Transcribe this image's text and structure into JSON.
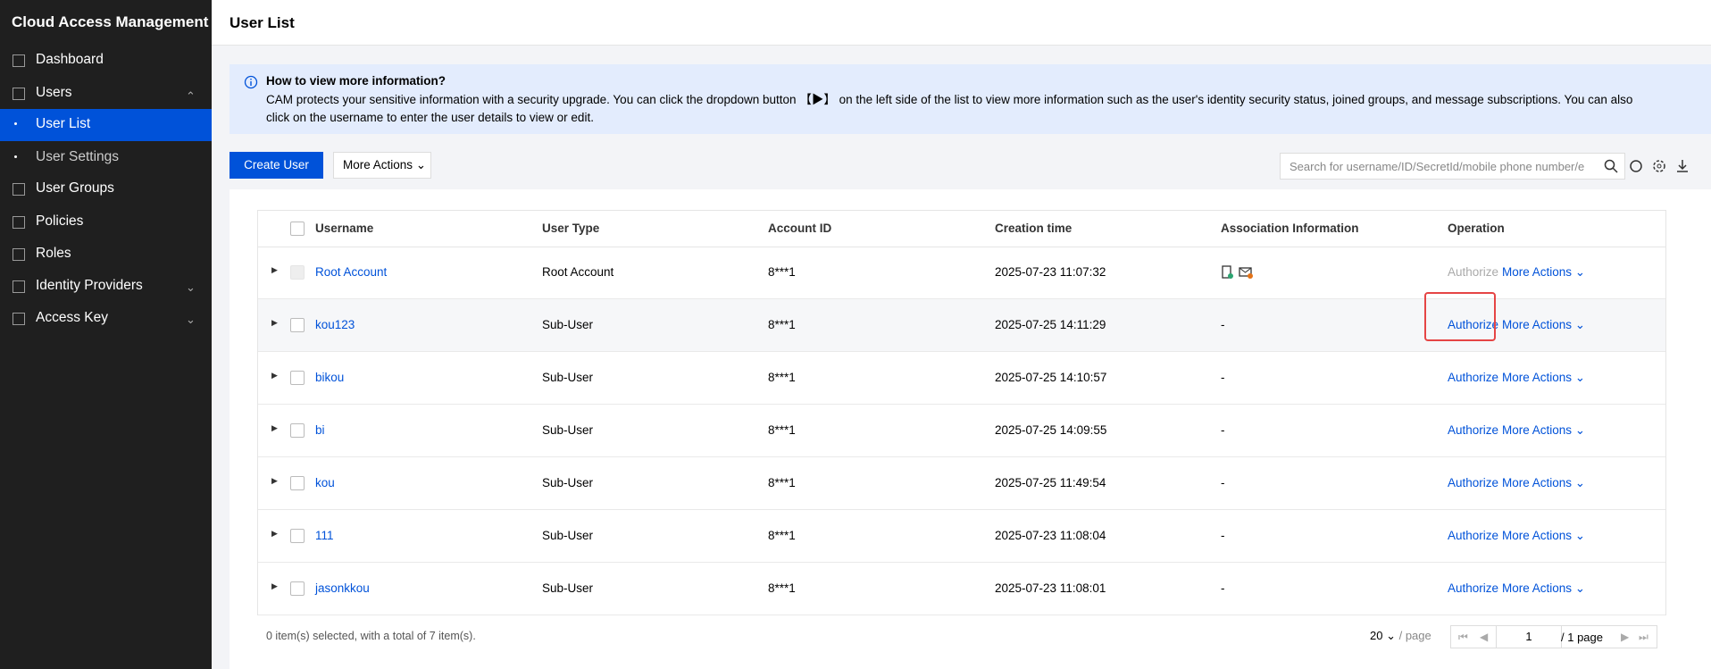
{
  "sidebar": {
    "title": "Cloud Access Management",
    "items": [
      "Dashboard",
      "Users",
      "User List",
      "User Settings",
      "User Groups",
      "Policies",
      "Roles",
      "Identity Providers",
      "Access Key"
    ]
  },
  "header": {
    "title": "User List"
  },
  "info": {
    "title": "How to view more information?",
    "text": "CAM protects your sensitive information with a security upgrade. You can click the dropdown button 【▶】 on the left side of the list to view more information such as the user's identity security status, joined groups, and message subscriptions. You can also click on the username to enter the user details to view or edit."
  },
  "toolbar": {
    "create": "Create User",
    "more": "More Actions",
    "search": "Search for username/ID/SecretId/mobile phone number/e"
  },
  "table": {
    "columns": [
      "Username",
      "User Type",
      "Account ID",
      "Creation time",
      "Association Information",
      "Operation"
    ],
    "rows": [
      {
        "username": "Root Account",
        "type": "Root Account",
        "account": "8***1",
        "time": "2025-07-23 11:07:32",
        "association": null,
        "authorize": "Authorize",
        "more": "More Actions"
      },
      {
        "username": "kou123",
        "type": "Sub-User",
        "account": "8***1",
        "time": "2025-07-25 14:11:29",
        "association": "-",
        "authorize": "Authorize",
        "more": "More Actions"
      },
      {
        "username": "bikou",
        "type": "Sub-User",
        "account": "8***1",
        "time": "2025-07-25 14:10:57",
        "association": "-",
        "authorize": "Authorize",
        "more": "More Actions"
      },
      {
        "username": "bi",
        "type": "Sub-User",
        "account": "8***1",
        "time": "2025-07-25 14:09:55",
        "association": "-",
        "authorize": "Authorize",
        "more": "More Actions"
      },
      {
        "username": "kou",
        "type": "Sub-User",
        "account": "8***1",
        "time": "2025-07-25 11:49:54",
        "association": "-",
        "authorize": "Authorize",
        "more": "More Actions"
      },
      {
        "username": "111",
        "type": "Sub-User",
        "account": "8***1",
        "time": "2025-07-23 11:08:04",
        "association": "-",
        "authorize": "Authorize",
        "more": "More Actions"
      },
      {
        "username": "jasonkkou",
        "type": "Sub-User",
        "account": "8***1",
        "time": "2025-07-23 11:08:01",
        "association": "-",
        "authorize": "Authorize",
        "more": "More Actions"
      }
    ]
  },
  "footer": {
    "summary": "0 item(s) selected, with a total of 7 item(s).",
    "page_size": "20",
    "per_page": "/ page",
    "page": "1",
    "total_pages": "/ 1 page"
  }
}
